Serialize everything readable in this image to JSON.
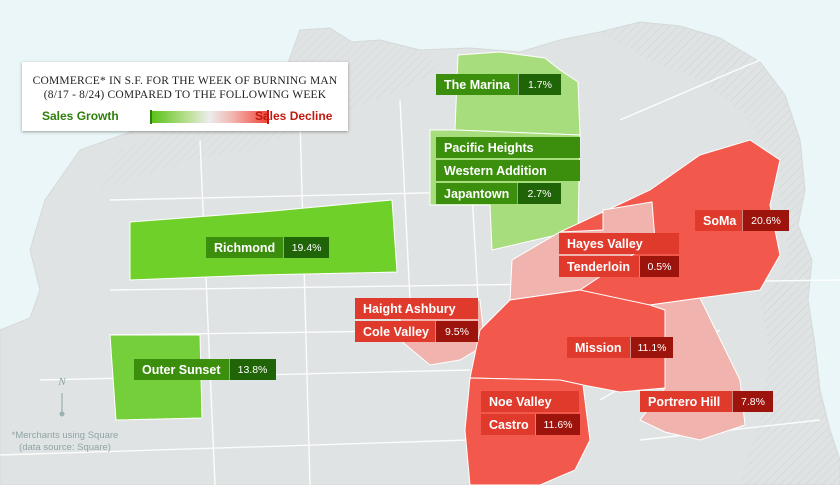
{
  "legend": {
    "title_line1": "Commerce* in S.F. for the week of Burning Man",
    "title_line2": "(8/17 - 8/24) compared to the following  week",
    "growth_label": "Sales Growth",
    "decline_label": "Sales Decline",
    "scale_colors": [
      "#5cc21a",
      "#ececec",
      "#f0473c"
    ]
  },
  "neighborhoods": [
    {
      "names": [
        "The Marina"
      ],
      "value": "1.7%",
      "trend": "growth"
    },
    {
      "names": [
        "Pacific Heights",
        "Western Addition",
        "Japantown"
      ],
      "value": "2.7%",
      "trend": "growth"
    },
    {
      "names": [
        "Richmond"
      ],
      "value": "19.4%",
      "trend": "growth"
    },
    {
      "names": [
        "Outer Sunset"
      ],
      "value": "13.8%",
      "trend": "growth"
    },
    {
      "names": [
        "SoMa"
      ],
      "value": "20.6%",
      "trend": "decline"
    },
    {
      "names": [
        "Hayes Valley",
        "Tenderloin"
      ],
      "value": "0.5%",
      "trend": "decline"
    },
    {
      "names": [
        "Haight Ashbury",
        "Cole Valley"
      ],
      "value": "9.5%",
      "trend": "decline"
    },
    {
      "names": [
        "Mission"
      ],
      "value": "11.1%",
      "trend": "decline"
    },
    {
      "names": [
        "Noe Valley",
        "Castro"
      ],
      "value": "11.6%",
      "trend": "decline"
    },
    {
      "names": [
        "Portrero Hill"
      ],
      "value": "7.8%",
      "trend": "decline"
    }
  ],
  "compass": {
    "letter": "N"
  },
  "footnote": {
    "line1": "*Merchants using Square",
    "line2": "(data source: Square)"
  }
}
